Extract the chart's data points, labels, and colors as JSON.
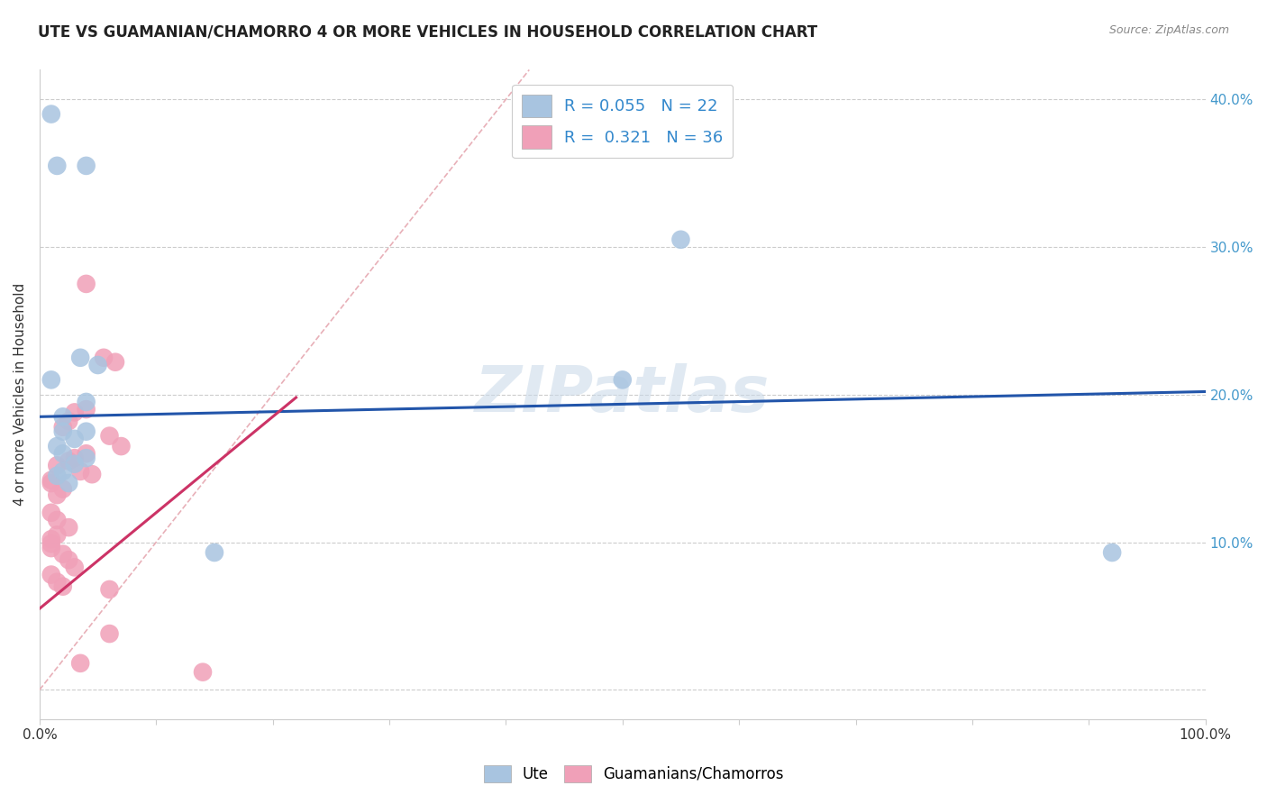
{
  "title": "UTE VS GUAMANIAN/CHAMORRO 4 OR MORE VEHICLES IN HOUSEHOLD CORRELATION CHART",
  "source": "Source: ZipAtlas.com",
  "ylabel": "4 or more Vehicles in Household",
  "xlim": [
    0.0,
    1.0
  ],
  "ylim": [
    -0.02,
    0.42
  ],
  "xticks": [
    0.0,
    0.1,
    0.2,
    0.3,
    0.4,
    0.5,
    0.6,
    0.7,
    0.8,
    0.9,
    1.0
  ],
  "xticklabels": [
    "0.0%",
    "",
    "",
    "",
    "",
    "",
    "",
    "",
    "",
    "",
    "100.0%"
  ],
  "yticks": [
    0.0,
    0.1,
    0.2,
    0.3,
    0.4
  ],
  "yticklabels": [
    "",
    "10.0%",
    "20.0%",
    "30.0%",
    "40.0%"
  ],
  "legend_blue_R": "0.055",
  "legend_blue_N": "22",
  "legend_pink_R": "0.321",
  "legend_pink_N": "36",
  "watermark": "ZIPatlas",
  "blue_color": "#a8c4e0",
  "pink_color": "#f0a0b8",
  "trendline_blue_color": "#2255aa",
  "trendline_pink_color": "#cc3366",
  "diagonal_color": "#e8b0b8",
  "blue_trend_x0": 0.0,
  "blue_trend_y0": 0.185,
  "blue_trend_x1": 1.0,
  "blue_trend_y1": 0.202,
  "pink_trend_x0": 0.0,
  "pink_trend_y0": 0.055,
  "pink_trend_x1": 0.22,
  "pink_trend_y1": 0.198,
  "ute_data": [
    [
      0.01,
      0.39
    ],
    [
      0.015,
      0.355
    ],
    [
      0.04,
      0.355
    ],
    [
      0.01,
      0.21
    ],
    [
      0.55,
      0.305
    ],
    [
      0.5,
      0.21
    ],
    [
      0.035,
      0.225
    ],
    [
      0.05,
      0.22
    ],
    [
      0.04,
      0.195
    ],
    [
      0.02,
      0.185
    ],
    [
      0.02,
      0.175
    ],
    [
      0.04,
      0.175
    ],
    [
      0.03,
      0.17
    ],
    [
      0.015,
      0.165
    ],
    [
      0.02,
      0.16
    ],
    [
      0.04,
      0.157
    ],
    [
      0.03,
      0.153
    ],
    [
      0.02,
      0.148
    ],
    [
      0.015,
      0.145
    ],
    [
      0.025,
      0.14
    ],
    [
      0.15,
      0.093
    ],
    [
      0.92,
      0.093
    ]
  ],
  "guam_data": [
    [
      0.04,
      0.275
    ],
    [
      0.055,
      0.225
    ],
    [
      0.065,
      0.222
    ],
    [
      0.04,
      0.19
    ],
    [
      0.03,
      0.188
    ],
    [
      0.025,
      0.182
    ],
    [
      0.02,
      0.178
    ],
    [
      0.06,
      0.172
    ],
    [
      0.07,
      0.165
    ],
    [
      0.04,
      0.16
    ],
    [
      0.03,
      0.157
    ],
    [
      0.025,
      0.155
    ],
    [
      0.015,
      0.152
    ],
    [
      0.035,
      0.148
    ],
    [
      0.045,
      0.146
    ],
    [
      0.01,
      0.142
    ],
    [
      0.01,
      0.14
    ],
    [
      0.02,
      0.136
    ],
    [
      0.015,
      0.132
    ],
    [
      0.01,
      0.12
    ],
    [
      0.015,
      0.115
    ],
    [
      0.025,
      0.11
    ],
    [
      0.015,
      0.105
    ],
    [
      0.01,
      0.102
    ],
    [
      0.01,
      0.099
    ],
    [
      0.01,
      0.096
    ],
    [
      0.02,
      0.092
    ],
    [
      0.025,
      0.088
    ],
    [
      0.03,
      0.083
    ],
    [
      0.01,
      0.078
    ],
    [
      0.015,
      0.073
    ],
    [
      0.02,
      0.07
    ],
    [
      0.06,
      0.068
    ],
    [
      0.06,
      0.038
    ],
    [
      0.035,
      0.018
    ],
    [
      0.14,
      0.012
    ]
  ]
}
